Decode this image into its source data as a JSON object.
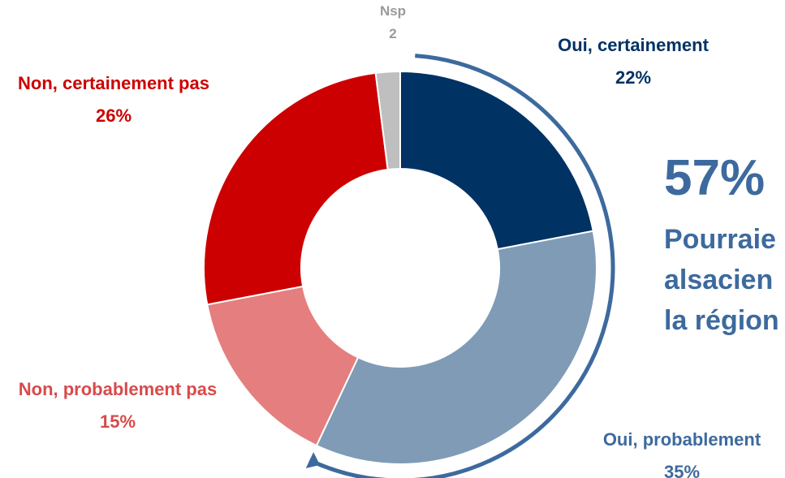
{
  "chart_data": {
    "type": "donut",
    "categories": [
      "Oui, certainement",
      "Oui, probablement",
      "Non, probablement pas",
      "Non, certainement pas",
      "Nsp"
    ],
    "values": [
      22,
      35,
      15,
      26,
      2
    ],
    "value_labels": [
      "22%",
      "35%",
      "15%",
      "26%",
      "2"
    ],
    "colors": [
      "#003263",
      "#7f9bb6",
      "#e57e7e",
      "#cc0000",
      "#bfbfbf"
    ],
    "label_colors": [
      "#003263",
      "#3d6a9e",
      "#d94a4a",
      "#cc0000",
      "#9a9a9a"
    ],
    "annotation": {
      "value": 57,
      "label": "57%",
      "text": [
        "Pourraie",
        "alsacien",
        "la région"
      ],
      "color": "#3d6a9e"
    }
  }
}
